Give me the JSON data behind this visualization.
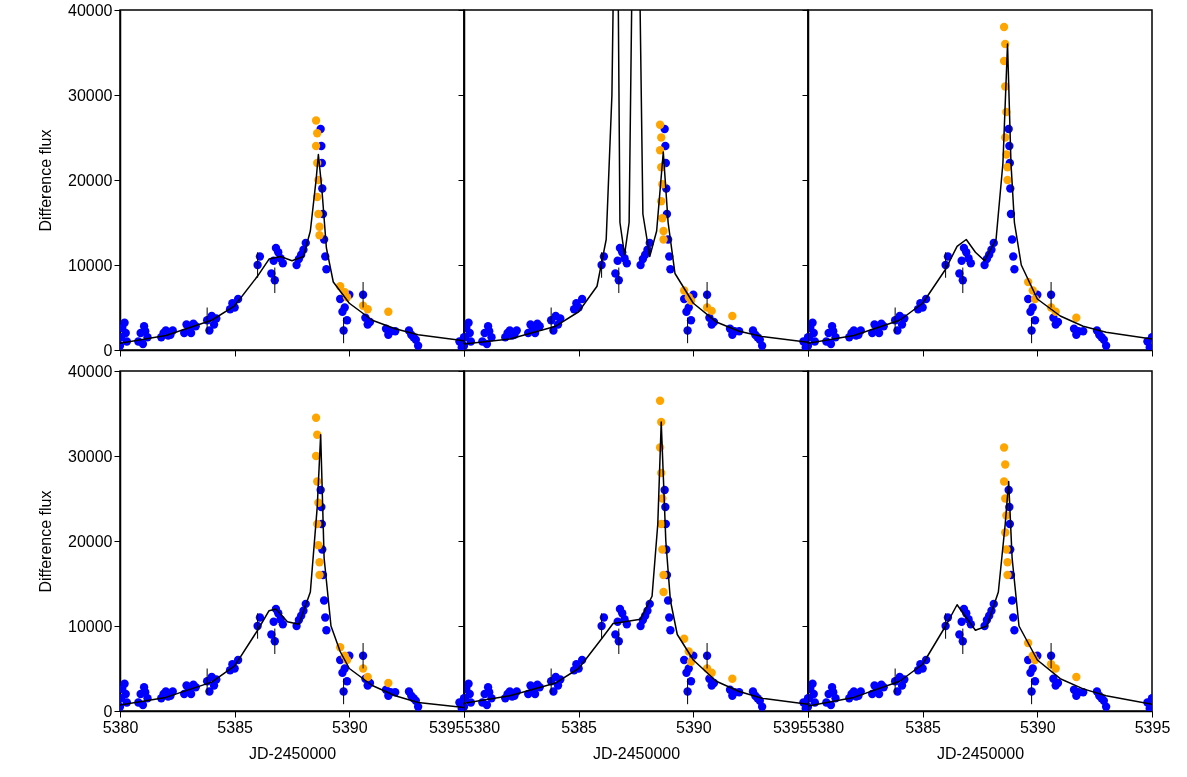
{
  "chart_data": [
    {
      "type": "scatter",
      "ylabel": "Difference flux",
      "xlim": [
        5380,
        5395
      ],
      "ylim": [
        0,
        40000
      ],
      "xticks": [
        5380,
        5385,
        5390,
        5395
      ],
      "yticks": [
        0,
        10000,
        20000,
        30000,
        40000
      ],
      "tick_labels": "y",
      "series": [
        {
          "color": "#0000ff",
          "marker": "circle",
          "x": [
            5380.0,
            5380.05,
            5380.1,
            5380.2,
            5380.25,
            5380.3,
            5380.8,
            5380.9,
            5381.0,
            5381.05,
            5381.1,
            5381.2,
            5381.8,
            5381.9,
            5382.0,
            5382.1,
            5382.2,
            5382.3,
            5382.8,
            5382.9,
            5383.0,
            5383.1,
            5383.2,
            5383.3,
            5383.8,
            5383.9,
            5384.0,
            5384.1,
            5384.2,
            5384.8,
            5384.9,
            5385.0,
            5385.15,
            5386.0,
            5386.1,
            5386.6,
            5386.7,
            5386.75,
            5386.8,
            5386.9,
            5387.0,
            5387.1,
            5387.7,
            5387.8,
            5387.9,
            5388.0,
            5388.1,
            5388.75,
            5388.78,
            5388.8,
            5388.82,
            5388.85,
            5388.9,
            5388.95,
            5389.0,
            5389.6,
            5389.7,
            5389.75,
            5389.8,
            5389.9,
            5390.0,
            5390.6,
            5390.7,
            5390.8,
            5390.9,
            5391.6,
            5391.7,
            5391.8,
            5392.0,
            5392.6,
            5392.7,
            5392.8,
            5392.9,
            5393.0,
            5394.8,
            5394.9,
            5395.0
          ],
          "values": [
            500,
            1500,
            2600,
            3200,
            2000,
            1000,
            1000,
            2000,
            700,
            2800,
            2200,
            1500,
            1500,
            2000,
            2300,
            1700,
            1800,
            2300,
            2000,
            3000,
            2500,
            2000,
            3100,
            2800,
            3500,
            2300,
            4000,
            3000,
            3700,
            4800,
            5500,
            5000,
            6000,
            10000,
            11000,
            9000,
            10500,
            8200,
            12000,
            11500,
            10800,
            10200,
            10000,
            10700,
            11200,
            11800,
            12600,
            26000,
            24000,
            22000,
            19000,
            16000,
            13000,
            11000,
            9500,
            6000,
            4500,
            2300,
            5000,
            3500,
            6500,
            6500,
            3800,
            3000,
            3300,
            2500,
            1800,
            2200,
            2200,
            2300,
            1800,
            1500,
            1200,
            500,
            1000,
            300,
            1500
          ],
          "errors": [
            null,
            null,
            null,
            null,
            null,
            null,
            null,
            null,
            null,
            null,
            null,
            null,
            null,
            null,
            null,
            null,
            null,
            null,
            null,
            null,
            null,
            null,
            null,
            null,
            1500,
            null,
            null,
            null,
            null,
            null,
            null,
            null,
            null,
            1500,
            null,
            null,
            null,
            1500,
            null,
            null,
            null,
            null,
            null,
            null,
            null,
            null,
            null,
            null,
            null,
            null,
            null,
            null,
            null,
            null,
            null,
            null,
            null,
            1500,
            null,
            null,
            null,
            1500,
            null,
            null,
            null,
            null,
            null,
            null,
            null,
            null,
            null,
            null,
            null,
            null,
            null,
            null,
            null
          ]
        },
        {
          "color": "#ffa500",
          "marker": "circle",
          "x": [
            5388.55,
            5388.6,
            5388.55,
            5388.6,
            5388.65,
            5388.6,
            5388.65,
            5388.7,
            5388.7,
            5389.6,
            5389.8,
            5389.9,
            5390.6,
            5390.8,
            5391.7
          ],
          "values": [
            27000,
            25500,
            24000,
            22000,
            20000,
            18000,
            16000,
            14500,
            13500,
            7500,
            6800,
            6200,
            5200,
            4800,
            4500
          ]
        },
        {
          "type": "line",
          "color": "#000000",
          "x": [
            5380,
            5382,
            5384,
            5385,
            5386,
            5386.5,
            5387,
            5387.5,
            5388,
            5388.3,
            5388.55,
            5388.65,
            5388.8,
            5389,
            5389.3,
            5390,
            5391,
            5392,
            5393,
            5395
          ],
          "values": [
            800,
            1700,
            3500,
            5200,
            8700,
            10700,
            11000,
            10500,
            11000,
            14000,
            20000,
            23000,
            19000,
            12000,
            8000,
            5500,
            3500,
            2500,
            1800,
            1100
          ]
        }
      ]
    },
    {
      "type": "scatter",
      "xlim": [
        5380,
        5395
      ],
      "ylim": [
        0,
        40000
      ],
      "xticks": [
        5380,
        5385,
        5390,
        5395
      ],
      "yticks": [
        0,
        10000,
        20000,
        30000,
        40000
      ],
      "tick_labels": false,
      "series": [
        {
          "color": "#0000ff",
          "marker": "circle",
          "x": [
            5380.0,
            5380.05,
            5380.1,
            5380.2,
            5380.25,
            5380.3,
            5380.8,
            5380.9,
            5381.0,
            5381.05,
            5381.1,
            5381.2,
            5381.8,
            5381.9,
            5382.0,
            5382.1,
            5382.2,
            5382.3,
            5382.8,
            5382.9,
            5383.0,
            5383.1,
            5383.2,
            5383.3,
            5383.8,
            5383.9,
            5384.0,
            5384.1,
            5384.2,
            5384.8,
            5384.9,
            5385.0,
            5385.15,
            5386.0,
            5386.1,
            5386.6,
            5386.7,
            5386.75,
            5386.8,
            5386.9,
            5387.0,
            5387.1,
            5387.7,
            5387.8,
            5387.9,
            5388.0,
            5388.1,
            5388.75,
            5388.78,
            5388.8,
            5388.82,
            5388.85,
            5388.9,
            5388.95,
            5389.0,
            5389.6,
            5389.7,
            5389.75,
            5389.8,
            5389.9,
            5390.0,
            5390.6,
            5390.7,
            5390.8,
            5390.9,
            5391.6,
            5391.7,
            5391.8,
            5392.0,
            5392.6,
            5392.7,
            5392.8,
            5392.9,
            5393.0,
            5394.8,
            5394.9,
            5395.0
          ],
          "values": [
            500,
            1500,
            2600,
            3200,
            2000,
            1000,
            1000,
            2000,
            700,
            2800,
            2200,
            1500,
            1500,
            2000,
            2300,
            1700,
            1800,
            2300,
            2000,
            3000,
            2500,
            2000,
            3100,
            2800,
            3500,
            2300,
            4000,
            3000,
            3700,
            4800,
            5500,
            5000,
            6000,
            10000,
            11000,
            9000,
            10500,
            8200,
            12000,
            11500,
            10800,
            10200,
            10000,
            10700,
            11200,
            11800,
            12600,
            26000,
            24000,
            22000,
            19000,
            16000,
            13000,
            11000,
            9500,
            6000,
            4500,
            2300,
            5000,
            3500,
            6500,
            6500,
            3800,
            3000,
            3300,
            2500,
            1800,
            2200,
            2200,
            2300,
            1800,
            1500,
            1200,
            500,
            1000,
            300,
            1500
          ],
          "errors": [
            null,
            null,
            null,
            null,
            null,
            null,
            null,
            null,
            null,
            null,
            null,
            null,
            null,
            null,
            null,
            null,
            null,
            null,
            null,
            null,
            null,
            null,
            null,
            null,
            1500,
            null,
            null,
            null,
            null,
            null,
            null,
            null,
            null,
            1500,
            null,
            null,
            null,
            1500,
            null,
            null,
            null,
            null,
            null,
            null,
            null,
            null,
            null,
            null,
            null,
            null,
            null,
            null,
            null,
            null,
            null,
            null,
            null,
            1500,
            null,
            null,
            null,
            1500,
            null,
            null,
            null,
            null,
            null,
            null,
            null,
            null,
            null,
            null,
            null,
            null,
            null,
            null,
            null
          ]
        },
        {
          "color": "#ffa500",
          "marker": "circle",
          "x": [
            5388.55,
            5388.6,
            5388.55,
            5388.6,
            5388.65,
            5388.6,
            5388.65,
            5388.7,
            5388.7,
            5389.6,
            5389.8,
            5389.9,
            5390.6,
            5390.8,
            5391.7
          ],
          "values": [
            26500,
            25000,
            23500,
            21500,
            19500,
            17500,
            15500,
            14000,
            13000,
            7000,
            6200,
            5800,
            5000,
            4600,
            4000
          ]
        },
        {
          "type": "line",
          "color": "#000000",
          "x": [
            5380,
            5382,
            5384,
            5385,
            5385.8,
            5386.2,
            5386.45,
            5386.5,
            5386.6,
            5386.73,
            5386.8,
            5387.0,
            5387.2,
            5387.31,
            5387.5,
            5387.68,
            5387.8,
            5388.1,
            5388.4,
            5388.69,
            5388.9,
            5389.2,
            5390,
            5391,
            5392,
            5393,
            5395
          ],
          "values": [
            700,
            1300,
            2800,
            4500,
            7500,
            13000,
            30000,
            40000,
            null,
            40000,
            15000,
            11200,
            15000,
            40000,
            null,
            40000,
            16000,
            11000,
            14000,
            23300,
            15000,
            9000,
            5500,
            3300,
            2200,
            1600,
            900
          ]
        }
      ]
    },
    {
      "type": "scatter",
      "xlim": [
        5380,
        5395
      ],
      "ylim": [
        0,
        40000
      ],
      "xticks": [
        5380,
        5385,
        5390,
        5395
      ],
      "yticks": [
        0,
        10000,
        20000,
        30000,
        40000
      ],
      "tick_labels": false,
      "series": [
        {
          "color": "#0000ff",
          "marker": "circle",
          "x": [
            5380.0,
            5380.05,
            5380.1,
            5380.2,
            5380.25,
            5380.3,
            5380.8,
            5380.9,
            5381.0,
            5381.05,
            5381.1,
            5381.2,
            5381.8,
            5381.9,
            5382.0,
            5382.1,
            5382.2,
            5382.3,
            5382.8,
            5382.9,
            5383.0,
            5383.1,
            5383.2,
            5383.3,
            5383.8,
            5383.9,
            5384.0,
            5384.1,
            5384.2,
            5384.8,
            5384.9,
            5385.0,
            5385.15,
            5386.0,
            5386.1,
            5386.6,
            5386.7,
            5386.75,
            5386.8,
            5386.9,
            5387.0,
            5387.1,
            5387.7,
            5387.8,
            5387.9,
            5388.0,
            5388.1,
            5388.75,
            5388.78,
            5388.8,
            5388.82,
            5388.85,
            5388.9,
            5388.95,
            5389.0,
            5389.6,
            5389.7,
            5389.75,
            5389.8,
            5389.9,
            5390.0,
            5390.6,
            5390.7,
            5390.8,
            5390.9,
            5391.6,
            5391.7,
            5391.8,
            5392.0,
            5392.6,
            5392.7,
            5392.8,
            5392.9,
            5393.0,
            5394.8,
            5394.9,
            5395.0
          ],
          "values": [
            500,
            1500,
            2600,
            3200,
            2000,
            1000,
            1000,
            2000,
            700,
            2800,
            2200,
            1500,
            1500,
            2000,
            2300,
            1700,
            1800,
            2300,
            2000,
            3000,
            2500,
            2000,
            3100,
            2800,
            3500,
            2300,
            4000,
            3000,
            3700,
            4800,
            5500,
            5000,
            6000,
            10000,
            11000,
            9000,
            10500,
            8200,
            12000,
            11500,
            10800,
            10200,
            10000,
            10700,
            11200,
            11800,
            12600,
            26000,
            24000,
            22000,
            19000,
            16000,
            13000,
            11000,
            9500,
            6000,
            4500,
            2300,
            5000,
            3500,
            6500,
            6500,
            3800,
            3000,
            3300,
            2500,
            1800,
            2200,
            2200,
            2300,
            1800,
            1500,
            1200,
            500,
            1000,
            300,
            1500
          ],
          "errors": [
            null,
            null,
            null,
            null,
            null,
            null,
            null,
            null,
            null,
            null,
            null,
            null,
            null,
            null,
            null,
            null,
            null,
            null,
            null,
            null,
            null,
            null,
            null,
            null,
            1500,
            null,
            null,
            null,
            null,
            null,
            null,
            null,
            null,
            1500,
            null,
            null,
            null,
            1500,
            null,
            null,
            null,
            null,
            null,
            null,
            null,
            null,
            null,
            null,
            null,
            null,
            null,
            null,
            null,
            null,
            null,
            null,
            null,
            1500,
            null,
            null,
            null,
            1500,
            null,
            null,
            null,
            null,
            null,
            null,
            null,
            null,
            null,
            null,
            null,
            null,
            null,
            null,
            null
          ]
        },
        {
          "color": "#ffa500",
          "marker": "circle",
          "x": [
            5388.55,
            5388.6,
            5388.55,
            5388.6,
            5388.65,
            5388.6,
            5388.65,
            5388.7,
            5388.7,
            5389.6,
            5389.8,
            5389.9,
            5390.6,
            5390.8,
            5391.7
          ],
          "values": [
            38000,
            36000,
            34000,
            31000,
            28000,
            25000,
            23000,
            21500,
            20000,
            8000,
            7000,
            6000,
            5000,
            4500,
            3800
          ]
        },
        {
          "type": "line",
          "color": "#000000",
          "x": [
            5380,
            5382,
            5384,
            5385,
            5386,
            5386.5,
            5386.9,
            5387.3,
            5387.7,
            5388.2,
            5388.5,
            5388.7,
            5388.85,
            5389,
            5389.3,
            5390,
            5391,
            5392,
            5393,
            5395
          ],
          "values": [
            800,
            1700,
            3500,
            5500,
            9500,
            12200,
            13000,
            11500,
            10500,
            13000,
            22000,
            36000,
            22000,
            15000,
            10000,
            6000,
            4000,
            2800,
            2100,
            1300
          ]
        }
      ]
    },
    {
      "type": "scatter",
      "xlabel": "JD-2450000",
      "ylabel": "Difference flux",
      "xlim": [
        5380,
        5395
      ],
      "ylim": [
        0,
        40000
      ],
      "xticks": [
        5380,
        5385,
        5390,
        5395
      ],
      "yticks": [
        0,
        10000,
        20000,
        30000,
        40000
      ],
      "series": [
        {
          "color": "#0000ff",
          "marker": "circle",
          "x": [
            5380.0,
            5380.05,
            5380.1,
            5380.2,
            5380.25,
            5380.3,
            5380.8,
            5380.9,
            5381.0,
            5381.05,
            5381.1,
            5381.2,
            5381.8,
            5381.9,
            5382.0,
            5382.1,
            5382.2,
            5382.3,
            5382.8,
            5382.9,
            5383.0,
            5383.1,
            5383.2,
            5383.3,
            5383.8,
            5383.9,
            5384.0,
            5384.1,
            5384.2,
            5384.8,
            5384.9,
            5385.0,
            5385.15,
            5386.0,
            5386.1,
            5386.6,
            5386.7,
            5386.75,
            5386.8,
            5386.9,
            5387.0,
            5387.1,
            5387.7,
            5387.8,
            5387.9,
            5388.0,
            5388.1,
            5388.75,
            5388.78,
            5388.8,
            5388.82,
            5388.85,
            5388.9,
            5388.95,
            5389.0,
            5389.6,
            5389.7,
            5389.75,
            5389.8,
            5389.9,
            5390.0,
            5390.6,
            5390.7,
            5390.8,
            5390.9,
            5391.6,
            5391.7,
            5391.8,
            5392.0,
            5392.6,
            5392.7,
            5392.8,
            5392.9,
            5393.0,
            5394.8,
            5394.9,
            5395.0
          ],
          "values": [
            500,
            1500,
            2600,
            3200,
            2000,
            1000,
            1000,
            2000,
            700,
            2800,
            2200,
            1500,
            1500,
            2000,
            2300,
            1700,
            1800,
            2300,
            2000,
            3000,
            2500,
            2000,
            3100,
            2800,
            3500,
            2300,
            4000,
            3000,
            3700,
            4800,
            5500,
            5000,
            6000,
            10000,
            11000,
            9000,
            10500,
            8200,
            12000,
            11500,
            10800,
            10200,
            10000,
            10700,
            11200,
            11800,
            12600,
            26000,
            24000,
            22000,
            19000,
            16000,
            13000,
            11000,
            9500,
            6000,
            4500,
            2300,
            5000,
            3500,
            6500,
            6500,
            3800,
            3000,
            3300,
            2500,
            1800,
            2200,
            2200,
            2300,
            1800,
            1500,
            1200,
            500,
            1000,
            300,
            1500
          ],
          "errors": [
            null,
            null,
            null,
            null,
            null,
            null,
            null,
            null,
            null,
            null,
            null,
            null,
            null,
            null,
            null,
            null,
            null,
            null,
            null,
            null,
            null,
            null,
            null,
            null,
            1500,
            null,
            null,
            null,
            null,
            null,
            null,
            null,
            null,
            1500,
            null,
            null,
            null,
            1500,
            null,
            null,
            null,
            null,
            null,
            null,
            null,
            null,
            null,
            null,
            null,
            null,
            null,
            null,
            null,
            null,
            null,
            null,
            null,
            1500,
            null,
            null,
            null,
            1500,
            null,
            null,
            null,
            null,
            null,
            null,
            null,
            null,
            null,
            null,
            null,
            null,
            null,
            null,
            null
          ]
        },
        {
          "color": "#ffa500",
          "marker": "circle",
          "x": [
            5388.55,
            5388.6,
            5388.55,
            5388.6,
            5388.65,
            5388.6,
            5388.65,
            5388.7,
            5388.7,
            5389.6,
            5389.8,
            5389.9,
            5390.6,
            5390.8,
            5391.7
          ],
          "values": [
            34500,
            32500,
            30000,
            27000,
            24500,
            22000,
            19500,
            17500,
            16000,
            7500,
            6500,
            6000,
            5000,
            4000,
            3300
          ]
        },
        {
          "type": "line",
          "color": "#000000",
          "x": [
            5380,
            5382,
            5384,
            5385,
            5386,
            5386.5,
            5386.8,
            5387.3,
            5387.8,
            5388.3,
            5388.6,
            5388.75,
            5388.9,
            5389.2,
            5389.6,
            5390,
            5391,
            5392,
            5393,
            5395
          ],
          "values": [
            700,
            1600,
            3400,
            5300,
            9500,
            11800,
            12000,
            10500,
            10200,
            14000,
            24000,
            32500,
            18000,
            10000,
            7000,
            5000,
            3000,
            1800,
            1000,
            400
          ]
        }
      ]
    },
    {
      "type": "scatter",
      "xlabel": "JD-2450000",
      "xlim": [
        5380,
        5395
      ],
      "ylim": [
        0,
        40000
      ],
      "xticks": [
        5380,
        5385,
        5390,
        5395
      ],
      "yticks": [
        0,
        10000,
        20000,
        30000,
        40000
      ],
      "tick_labels": "x",
      "series": [
        {
          "color": "#0000ff",
          "marker": "circle",
          "x": [
            5380.0,
            5380.05,
            5380.1,
            5380.2,
            5380.25,
            5380.3,
            5380.8,
            5380.9,
            5381.0,
            5381.05,
            5381.1,
            5381.2,
            5381.8,
            5381.9,
            5382.0,
            5382.1,
            5382.2,
            5382.3,
            5382.8,
            5382.9,
            5383.0,
            5383.1,
            5383.2,
            5383.3,
            5383.8,
            5383.9,
            5384.0,
            5384.1,
            5384.2,
            5384.8,
            5384.9,
            5385.0,
            5385.15,
            5386.0,
            5386.1,
            5386.6,
            5386.7,
            5386.75,
            5386.8,
            5386.9,
            5387.0,
            5387.1,
            5387.7,
            5387.8,
            5387.9,
            5388.0,
            5388.1,
            5388.75,
            5388.78,
            5388.8,
            5388.82,
            5388.85,
            5388.9,
            5388.95,
            5389.0,
            5389.6,
            5389.7,
            5389.75,
            5389.8,
            5389.9,
            5390.0,
            5390.6,
            5390.7,
            5390.8,
            5390.9,
            5391.6,
            5391.7,
            5391.8,
            5392.0,
            5392.6,
            5392.7,
            5392.8,
            5392.9,
            5393.0,
            5394.8,
            5394.9,
            5395.0
          ],
          "values": [
            500,
            1500,
            2600,
            3200,
            2000,
            1000,
            1000,
            2000,
            700,
            2800,
            2200,
            1500,
            1500,
            2000,
            2300,
            1700,
            1800,
            2300,
            2000,
            3000,
            2500,
            2000,
            3100,
            2800,
            3500,
            2300,
            4000,
            3000,
            3700,
            4800,
            5500,
            5000,
            6000,
            10000,
            11000,
            9000,
            10500,
            8200,
            12000,
            11500,
            10800,
            10200,
            10000,
            10700,
            11200,
            11800,
            12600,
            26000,
            24000,
            22000,
            19000,
            16000,
            13000,
            11000,
            9500,
            6000,
            4500,
            2300,
            5000,
            3500,
            6500,
            6500,
            3800,
            3000,
            3300,
            2500,
            1800,
            2200,
            2200,
            2300,
            1800,
            1500,
            1200,
            500,
            1000,
            300,
            1500
          ],
          "errors": [
            null,
            null,
            null,
            null,
            null,
            null,
            null,
            null,
            null,
            null,
            null,
            null,
            null,
            null,
            null,
            null,
            null,
            null,
            null,
            null,
            null,
            null,
            null,
            null,
            1500,
            null,
            null,
            null,
            null,
            null,
            null,
            null,
            null,
            1500,
            null,
            null,
            null,
            1500,
            null,
            null,
            null,
            null,
            null,
            null,
            null,
            null,
            null,
            null,
            null,
            null,
            null,
            null,
            null,
            null,
            null,
            null,
            null,
            1500,
            null,
            null,
            null,
            1500,
            null,
            null,
            null,
            null,
            null,
            null,
            null,
            null,
            null,
            null,
            null,
            null,
            null,
            null,
            null
          ]
        },
        {
          "color": "#ffa500",
          "marker": "circle",
          "x": [
            5388.55,
            5388.6,
            5388.55,
            5388.6,
            5388.65,
            5388.6,
            5388.65,
            5388.7,
            5388.7,
            5389.6,
            5389.8,
            5389.9,
            5390.6,
            5390.8,
            5391.7
          ],
          "values": [
            36500,
            34000,
            31000,
            28000,
            25000,
            22000,
            19000,
            16000,
            14000,
            8500,
            7000,
            5800,
            5000,
            4500,
            3800
          ]
        },
        {
          "type": "line",
          "color": "#000000",
          "x": [
            5380,
            5382,
            5384,
            5385,
            5386,
            5386.5,
            5387,
            5387.7,
            5388.2,
            5388.45,
            5388.6,
            5388.8,
            5389,
            5389.3,
            5390,
            5391,
            5392,
            5393,
            5395
          ],
          "values": [
            900,
            1800,
            3300,
            5000,
            8500,
            10300,
            10500,
            10800,
            13500,
            22000,
            34000,
            20000,
            13000,
            9000,
            6000,
            3500,
            2300,
            1500,
            800
          ]
        }
      ]
    },
    {
      "type": "scatter",
      "xlabel": "JD-2450000",
      "xlim": [
        5380,
        5395
      ],
      "ylim": [
        0,
        40000
      ],
      "xticks": [
        5380,
        5385,
        5390,
        5395
      ],
      "yticks": [
        0,
        10000,
        20000,
        30000,
        40000
      ],
      "tick_labels": "x",
      "series": [
        {
          "color": "#0000ff",
          "marker": "circle",
          "x": [
            5380.0,
            5380.05,
            5380.1,
            5380.2,
            5380.25,
            5380.3,
            5380.8,
            5380.9,
            5381.0,
            5381.05,
            5381.1,
            5381.2,
            5381.8,
            5381.9,
            5382.0,
            5382.1,
            5382.2,
            5382.3,
            5382.8,
            5382.9,
            5383.0,
            5383.1,
            5383.2,
            5383.3,
            5383.8,
            5383.9,
            5384.0,
            5384.1,
            5384.2,
            5384.8,
            5384.9,
            5385.0,
            5385.15,
            5386.0,
            5386.1,
            5386.6,
            5386.7,
            5386.75,
            5386.8,
            5386.9,
            5387.0,
            5387.1,
            5387.7,
            5387.8,
            5387.9,
            5388.0,
            5388.1,
            5388.75,
            5388.78,
            5388.8,
            5388.82,
            5388.85,
            5388.9,
            5388.95,
            5389.0,
            5389.6,
            5389.7,
            5389.75,
            5389.8,
            5389.9,
            5390.0,
            5390.6,
            5390.7,
            5390.8,
            5390.9,
            5391.6,
            5391.7,
            5391.8,
            5392.0,
            5392.6,
            5392.7,
            5392.8,
            5392.9,
            5393.0,
            5394.8,
            5394.9,
            5395.0
          ],
          "values": [
            500,
            1500,
            2600,
            3200,
            2000,
            1000,
            1000,
            2000,
            700,
            2800,
            2200,
            1500,
            1500,
            2000,
            2300,
            1700,
            1800,
            2300,
            2000,
            3000,
            2500,
            2000,
            3100,
            2800,
            3500,
            2300,
            4000,
            3000,
            3700,
            4800,
            5500,
            5000,
            6000,
            10000,
            11000,
            9000,
            10500,
            8200,
            12000,
            11500,
            10800,
            10200,
            10000,
            10700,
            11200,
            11800,
            12600,
            26000,
            24000,
            22000,
            19000,
            16000,
            13000,
            11000,
            9500,
            6000,
            4500,
            2300,
            5000,
            3500,
            6500,
            6500,
            3800,
            3000,
            3300,
            2500,
            1800,
            2200,
            2200,
            2300,
            1800,
            1500,
            1200,
            500,
            1000,
            300,
            1500
          ],
          "errors": [
            null,
            null,
            null,
            null,
            null,
            null,
            null,
            null,
            null,
            null,
            null,
            null,
            null,
            null,
            null,
            null,
            null,
            null,
            null,
            null,
            null,
            null,
            null,
            null,
            1500,
            null,
            null,
            null,
            null,
            null,
            null,
            null,
            null,
            1500,
            null,
            null,
            null,
            1500,
            null,
            null,
            null,
            null,
            null,
            null,
            null,
            null,
            null,
            null,
            null,
            null,
            null,
            null,
            null,
            null,
            null,
            null,
            null,
            1500,
            null,
            null,
            null,
            1500,
            null,
            null,
            null,
            null,
            null,
            null,
            null,
            null,
            null,
            null,
            null,
            null,
            null,
            null,
            null
          ]
        },
        {
          "color": "#ffa500",
          "marker": "circle",
          "x": [
            5388.55,
            5388.6,
            5388.55,
            5388.6,
            5388.65,
            5388.6,
            5388.65,
            5388.7,
            5388.7,
            5389.6,
            5389.8,
            5389.9,
            5390.6,
            5390.8,
            5391.7
          ],
          "values": [
            31000,
            29000,
            27000,
            25000,
            23000,
            21000,
            19000,
            17500,
            16000,
            8000,
            6500,
            6000,
            5500,
            5000,
            4000
          ]
        },
        {
          "type": "line",
          "color": "#000000",
          "x": [
            5380,
            5382,
            5384,
            5385,
            5386,
            5386.5,
            5386.9,
            5387.3,
            5387.8,
            5388.3,
            5388.6,
            5388.75,
            5388.9,
            5389.2,
            5390,
            5391,
            5392,
            5393,
            5395
          ],
          "values": [
            600,
            1600,
            3500,
            5500,
            10000,
            12500,
            11000,
            9500,
            10000,
            14000,
            22000,
            27000,
            18000,
            10000,
            6000,
            3800,
            2600,
            1800,
            800
          ]
        }
      ]
    }
  ]
}
